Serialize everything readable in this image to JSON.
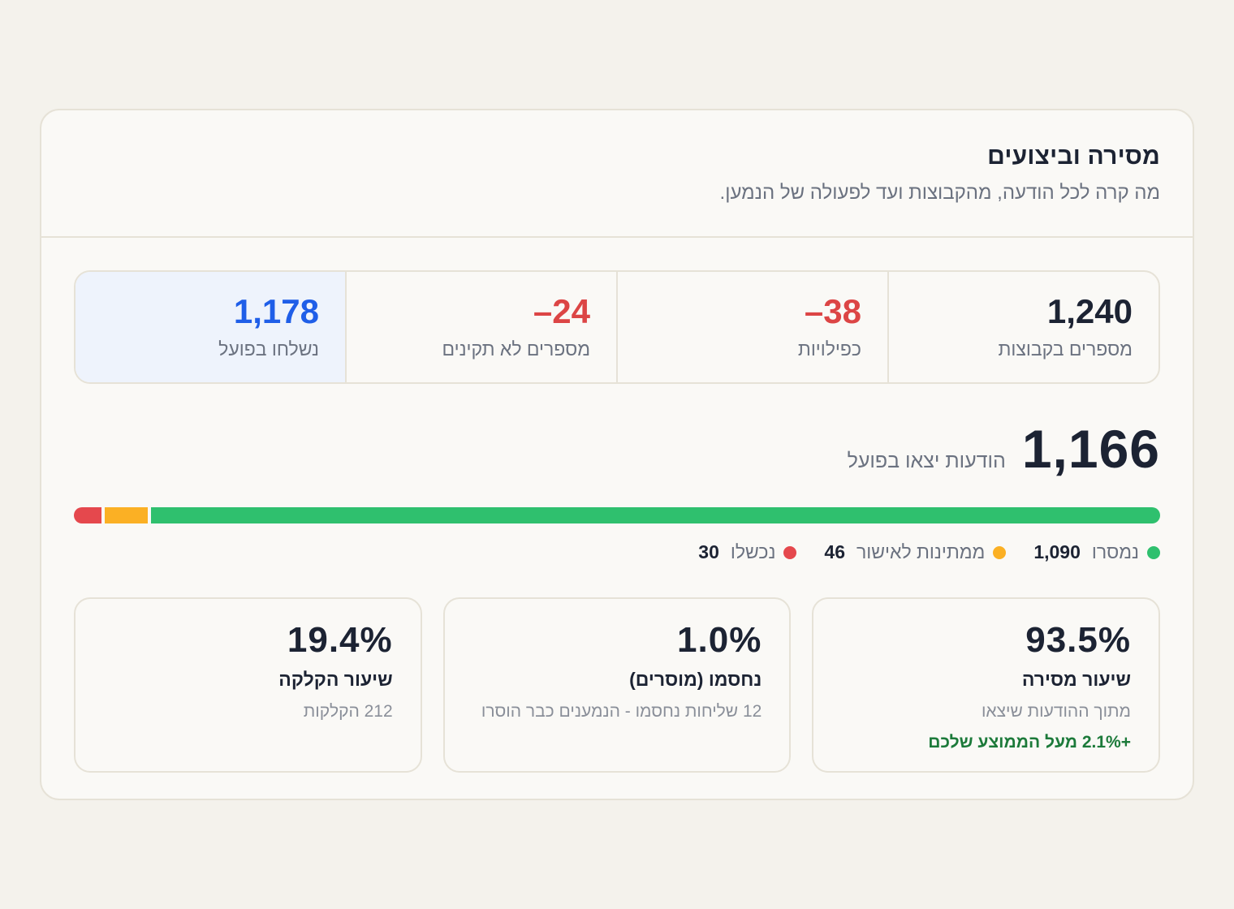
{
  "header": {
    "title": "מסירה וביצועים",
    "subtitle": "מה קרה לכל הודעה, מהקבוצות ועד לפעולה של הנמען."
  },
  "funnel": [
    {
      "value": "1,240",
      "label": "מספרים בקבוצות"
    },
    {
      "value": "–38",
      "label": "כפילויות"
    },
    {
      "value": "–24",
      "label": "מספרים לא תקינים"
    },
    {
      "value": "1,178",
      "label": "נשלחו בפועל"
    }
  ],
  "headline": {
    "value": "1,166",
    "label": "הודעות יצאו בפועל"
  },
  "breakdown": {
    "delivered": {
      "label": "נמסרו",
      "value": "1,090",
      "count": 1090,
      "color": "#2fc06e"
    },
    "pending": {
      "label": "ממתינות לאישור",
      "value": "46",
      "count": 46,
      "color": "#fbb024"
    },
    "failed": {
      "label": "נכשלו",
      "value": "30",
      "count": 30,
      "color": "#e5484d"
    }
  },
  "metrics": [
    {
      "value": "93.5%",
      "title": "שיעור מסירה",
      "sub": "מתוך ההודעות שיצאו",
      "delta": "+2.1% מעל הממוצע שלכם"
    },
    {
      "value": "1.0%",
      "title": "נחסמו (מוסרים)",
      "sub": "12 שליחות נחסמו - הנמענים כבר הוסרו"
    },
    {
      "value": "19.4%",
      "title": "שיעור הקלקה",
      "sub": "212 הקלקות"
    }
  ]
}
